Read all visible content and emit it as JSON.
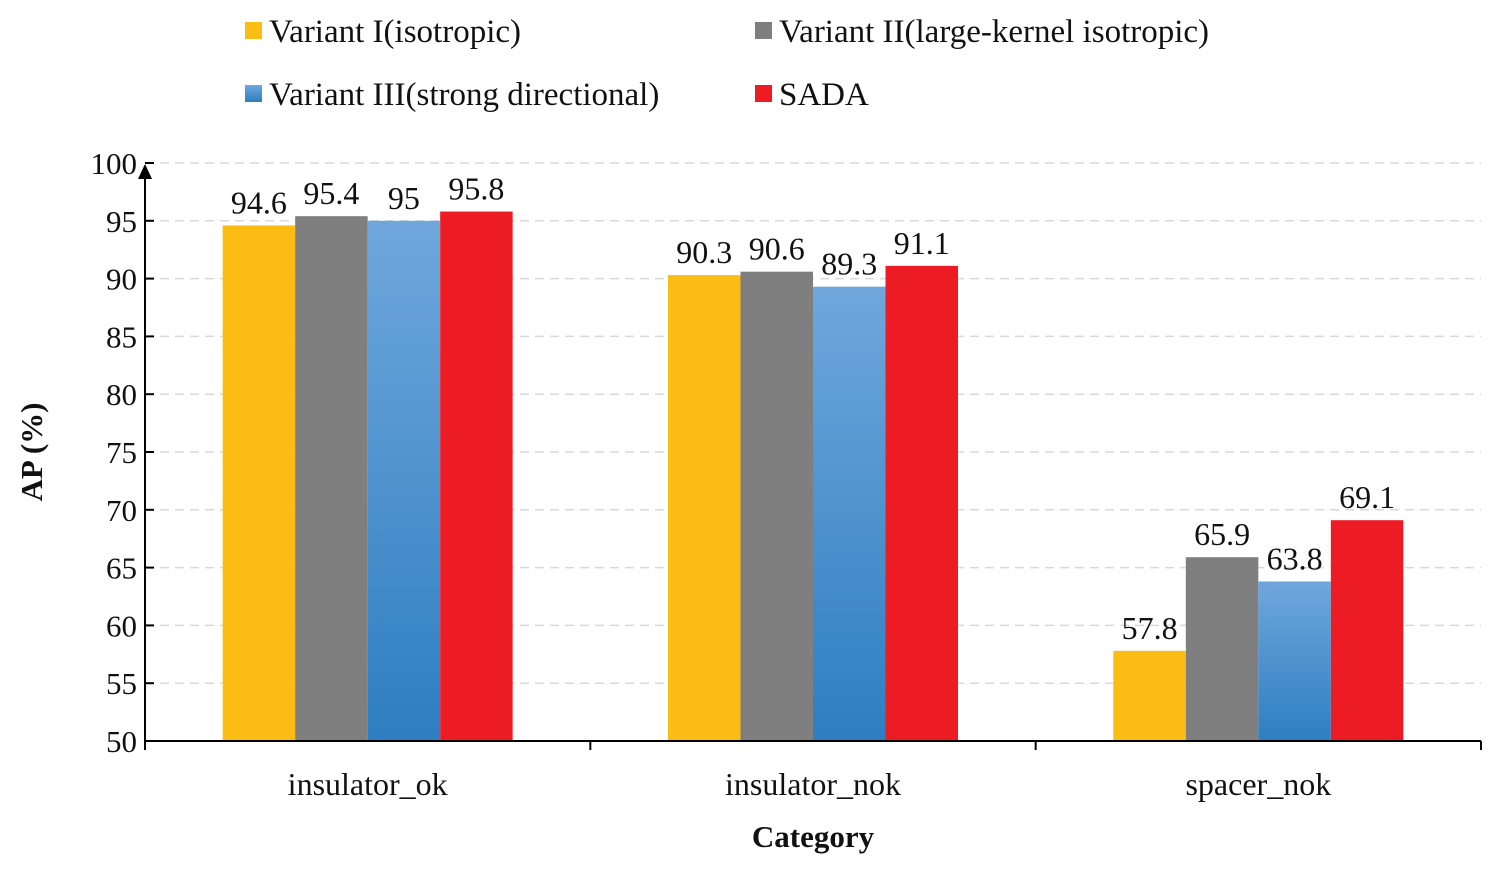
{
  "chart_data": {
    "type": "bar",
    "title": "",
    "xlabel": "Category",
    "ylabel": "AP  (%)",
    "ylim": [
      50,
      100
    ],
    "ytick_step": 5,
    "grid": true,
    "legend_position": "top",
    "categories": [
      "insulator_ok",
      "insulator_nok",
      "spacer_nok"
    ],
    "series": [
      {
        "name": "Variant I(isotropic)",
        "color": "#FBBC14",
        "values": [
          94.6,
          90.3,
          57.8
        ],
        "labels": [
          "94.6",
          "90.3",
          "57.8"
        ]
      },
      {
        "name": "Variant II(large-kernel isotropic)",
        "color": "#7F7F7F",
        "values": [
          95.4,
          90.6,
          65.9
        ],
        "labels": [
          "95.4",
          "90.6",
          "65.9"
        ]
      },
      {
        "name": "Variant III(strong directional)",
        "color": "#4A8FD0",
        "gradient": [
          "#6FA7DC",
          "#2E7EC1"
        ],
        "values": [
          95.0,
          89.3,
          63.8
        ],
        "labels": [
          "95",
          "89.3",
          "63.8"
        ]
      },
      {
        "name": "SADA",
        "color": "#ED1C24",
        "values": [
          95.8,
          91.1,
          69.1
        ],
        "labels": [
          "95.8",
          "91.1",
          "69.1"
        ]
      }
    ]
  }
}
